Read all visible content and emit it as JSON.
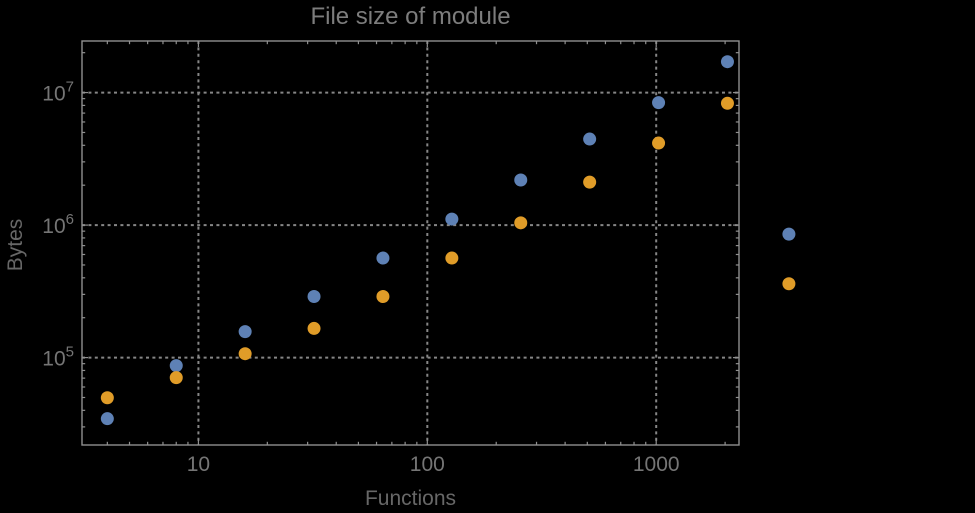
{
  "title": "File size of module",
  "colors": {
    "background": "#000000",
    "frame": "#909090",
    "grid": "#868686",
    "title_text": "#7d7d7d",
    "tick_label_text": "#757575",
    "axis_label_text": "#676767",
    "series_blue": "#5e81b5",
    "series_orange": "#e09c28"
  },
  "chart_data": {
    "type": "scatter",
    "title": "File size of module",
    "xlabel": "Functions",
    "ylabel": "Bytes",
    "x_scale": "log",
    "y_scale": "log",
    "xlim": [
      3.1,
      2300
    ],
    "ylim": [
      21900,
      24500000
    ],
    "grid": true,
    "legend": "none",
    "marker_diameter_px": 13,
    "x_ticks": [
      {
        "value": 10,
        "label": "10"
      },
      {
        "value": 100,
        "label": "100"
      },
      {
        "value": 1000,
        "label": "1000"
      }
    ],
    "y_ticks": [
      {
        "value": 100000,
        "mantissa": "10",
        "exponent": "5"
      },
      {
        "value": 1000000,
        "mantissa": "10",
        "exponent": "6"
      },
      {
        "value": 10000000,
        "mantissa": "10",
        "exponent": "7"
      }
    ],
    "x": [
      4,
      8,
      16,
      32,
      64,
      128,
      256,
      512,
      1024,
      2048,
      3800
    ],
    "series": [
      {
        "name": "series-blue",
        "color_key": "series_blue",
        "values": [
          34600,
          87000,
          157000,
          289000,
          564000,
          1110000,
          2190000,
          4460000,
          8400000,
          17100000,
          855000
        ]
      },
      {
        "name": "series-orange",
        "color_key": "series_orange",
        "values": [
          49800,
          70600,
          107000,
          166000,
          289000,
          564000,
          1040000,
          2110000,
          4160000,
          8300000,
          361000
        ]
      }
    ],
    "note": "points may render outside frame (no clipping)"
  }
}
